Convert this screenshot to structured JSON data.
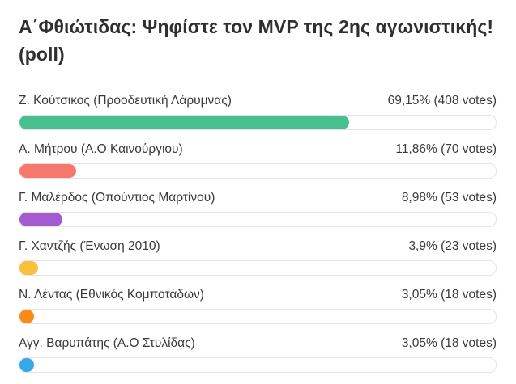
{
  "poll": {
    "title": "Α΄Φθιώτιδας: Ψηφίστε τον MVP της 2ης αγωνιστικής! (poll)",
    "options": [
      {
        "label": "Ζ. Κούτσικος (Προοδευτική Λάρυμνας)",
        "stats": "69,15% (408 votes)",
        "percent": 69.15,
        "color": "#48bf8f"
      },
      {
        "label": "Α. Μήτρου (Α.Ο Καινούργιου)",
        "stats": "11,86% (70 votes)",
        "percent": 11.86,
        "color": "#f6776c"
      },
      {
        "label": "Γ. Μαλέρδος (Οπούντιος Μαρτίνου)",
        "stats": "8,98% (53 votes)",
        "percent": 8.98,
        "color": "#a45bd1"
      },
      {
        "label": "Γ. Χαντζής (Ένωση 2010)",
        "stats": "3,9% (23 votes)",
        "percent": 3.9,
        "color": "#fbbf3e"
      },
      {
        "label": "Ν. Λέντας (Εθνικός Κομποτάδων)",
        "stats": "3,05% (18 votes)",
        "percent": 3.05,
        "color": "#f98b18"
      },
      {
        "label": "Αγγ. Βαρυπάτης (Α.Ο Στυλίδας)",
        "stats": "3,05% (18 votes)",
        "percent": 3.05,
        "color": "#33a9e8"
      }
    ]
  }
}
